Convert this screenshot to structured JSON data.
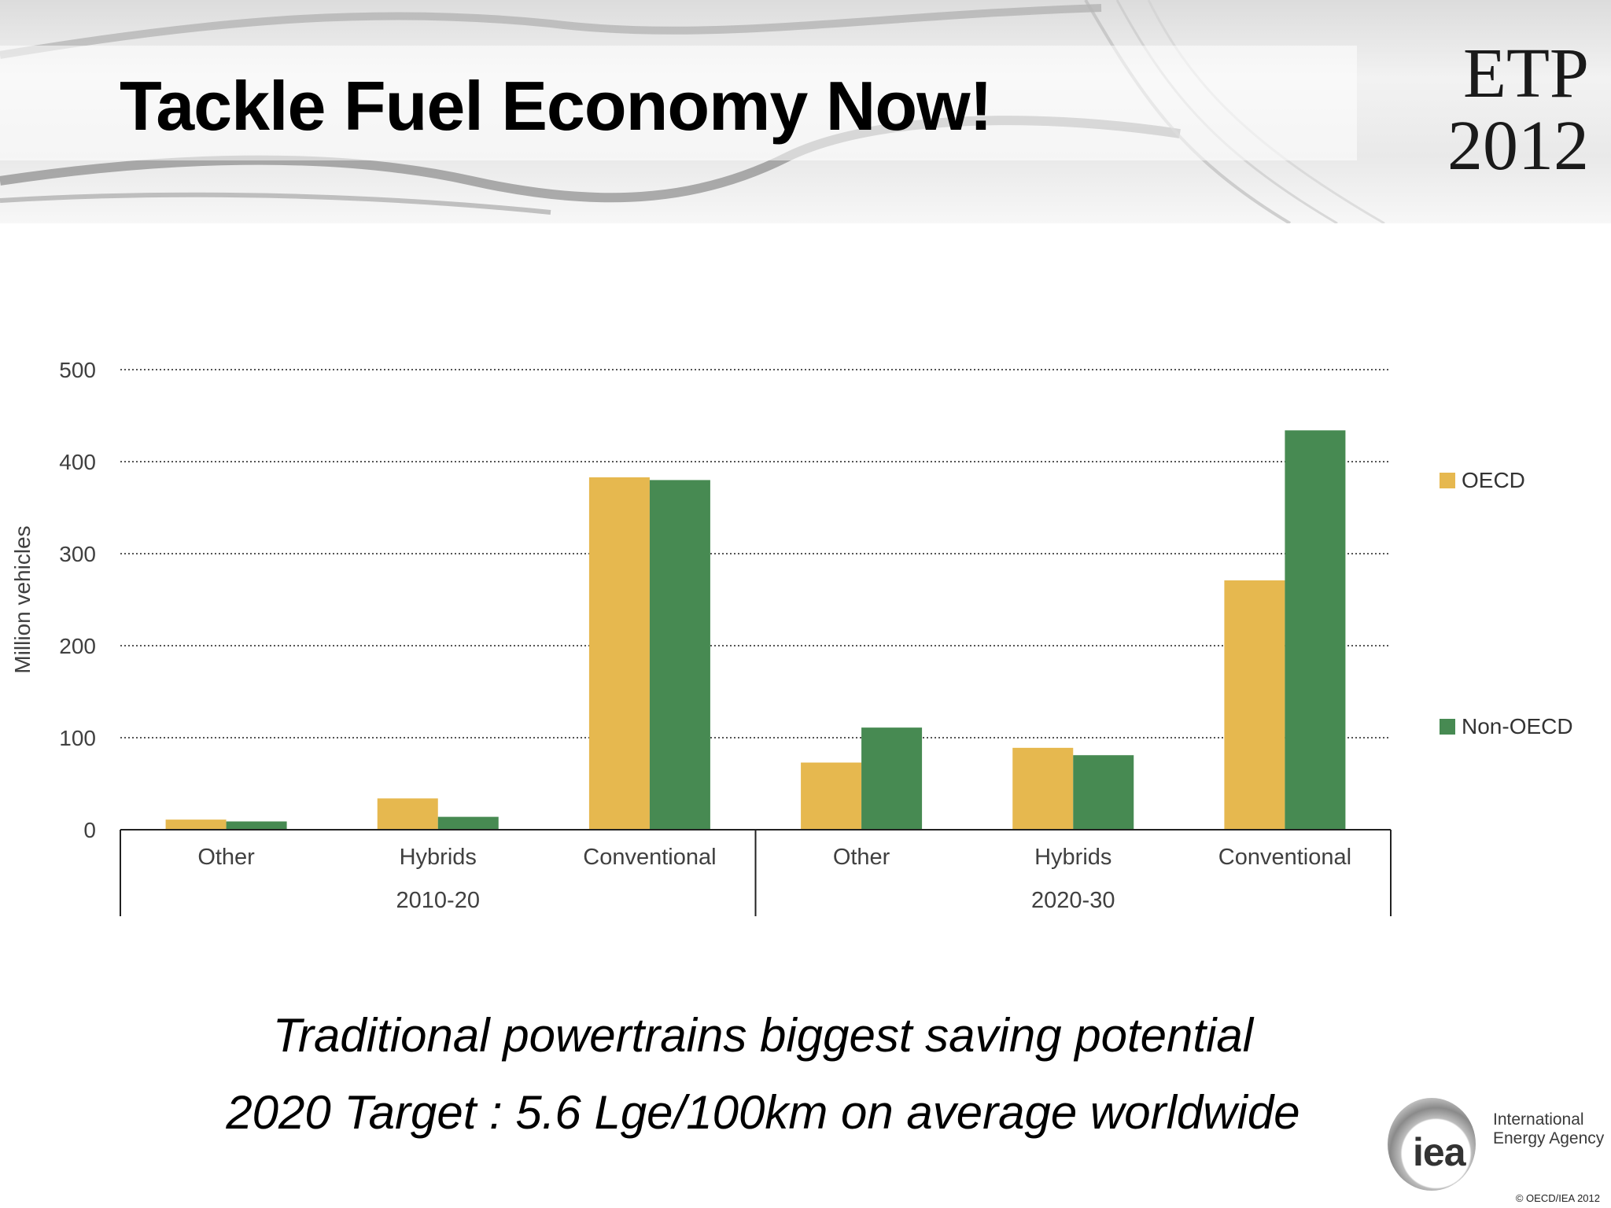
{
  "slide": {
    "title": "Tackle Fuel Economy Now!",
    "badge": {
      "line1": "ETP",
      "line2": "2012"
    }
  },
  "captions": [
    "Traditional powertrains biggest saving potential",
    "2020 Target : 5.6 Lge/100km on average worldwide"
  ],
  "footer": {
    "logo_text": "iea",
    "org_line1": "International",
    "org_line2": "Energy Agency",
    "copyright": "© OECD/IEA 2012"
  },
  "chart_data": {
    "type": "bar",
    "title": "",
    "xlabel": "",
    "ylabel": "Million vehicles",
    "ylim": [
      0,
      500
    ],
    "yticks": [
      0,
      100,
      200,
      300,
      400,
      500
    ],
    "grid": "horizontal-dotted",
    "legend_placement": "right",
    "groups": [
      {
        "label": "2010-20",
        "categories": [
          "Other",
          "Hybrids",
          "Conventional"
        ]
      },
      {
        "label": "2020-30",
        "categories": [
          "Other",
          "Hybrids",
          "Conventional"
        ]
      }
    ],
    "series": [
      {
        "name": "OECD",
        "color": "#e6b84f",
        "values": [
          11,
          34,
          383,
          73,
          89,
          271
        ]
      },
      {
        "name": "Non-OECD",
        "color": "#478a52",
        "values": [
          9,
          14,
          380,
          111,
          81,
          434
        ]
      }
    ]
  }
}
